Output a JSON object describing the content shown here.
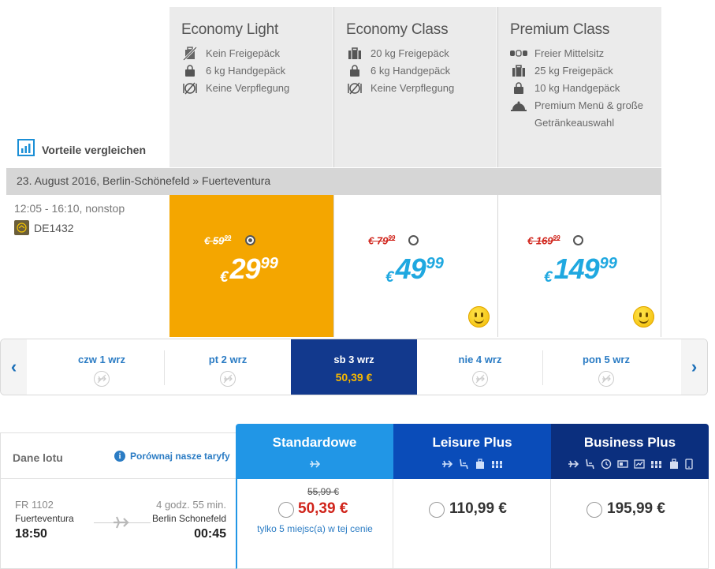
{
  "fares": [
    {
      "title": "Economy Light",
      "features": [
        {
          "icon": "no-baggage-icon",
          "text": "Kein Freigepäck"
        },
        {
          "icon": "handbag-icon",
          "text": "6 kg Handgepäck"
        },
        {
          "icon": "no-meal-icon",
          "text": "Keine Verpflegung"
        }
      ]
    },
    {
      "title": "Economy Class",
      "features": [
        {
          "icon": "suitcase-icon",
          "text": "20 kg Freigepäck"
        },
        {
          "icon": "handbag-icon",
          "text": "6 kg Handgepäck"
        },
        {
          "icon": "no-meal-icon",
          "text": "Keine Verpflegung"
        }
      ]
    },
    {
      "title": "Premium Class",
      "features": [
        {
          "icon": "free-seat-icon",
          "text": "Freier Mittelsitz"
        },
        {
          "icon": "suitcase-icon",
          "text": "25 kg Freigepäck"
        },
        {
          "icon": "handbag-icon",
          "text": "10 kg Handgepäck"
        },
        {
          "icon": "meal-cloche-icon",
          "text": "Premium Menü & große Getränkeauswahl"
        }
      ]
    }
  ],
  "compare_label": "Vorteile vergleichen",
  "route": "23. August 2016, Berlin-Schönefeld » Fuerteventura",
  "flight": {
    "times": "12:05 - 16:10, nonstop",
    "number": "DE1432"
  },
  "prices": [
    {
      "old": "€ 59",
      "old_cents": "99",
      "currency": "€",
      "main": "29",
      "cents": "99",
      "selected": true,
      "smiley": false
    },
    {
      "old": "€ 79",
      "old_cents": "99",
      "currency": "€",
      "main": "49",
      "cents": "99",
      "selected": false,
      "smiley": true
    },
    {
      "old": "€ 169",
      "old_cents": "99",
      "currency": "€",
      "main": "149",
      "cents": "99",
      "selected": false,
      "smiley": true
    }
  ],
  "colors": {
    "selected_fare_bg": "#f4a600",
    "price_blue": "#1fa8e0",
    "old_price_red": "#d0241b",
    "carousel_active_bg": "#12398d",
    "carousel_active_price": "#f6b700",
    "standard_head": "#2196e6",
    "leisure_head": "#0a4cb9",
    "business_head": "#0b2f7e"
  },
  "dates": [
    {
      "label": "czw 1 wrz",
      "price": "",
      "active": false
    },
    {
      "label": "pt 2 wrz",
      "price": "",
      "active": false
    },
    {
      "label": "sb 3 wrz",
      "price": "50,39 €",
      "active": true
    },
    {
      "label": "nie 4 wrz",
      "price": "",
      "active": false
    },
    {
      "label": "pon 5 wrz",
      "price": "",
      "active": false
    }
  ],
  "bottom": {
    "flight_data_label": "Dane lotu",
    "compare_link": "Porównaj nasze taryfy",
    "tariffs": [
      {
        "name": "Standardowe",
        "old": "55,99 €",
        "price": "50,39 €",
        "note": "tylko 5 miejsc(a) w tej cenie"
      },
      {
        "name": "Leisure Plus",
        "old": "",
        "price": "110,99 €",
        "note": ""
      },
      {
        "name": "Business Plus",
        "old": "",
        "price": "195,99 €",
        "note": ""
      }
    ],
    "flight": {
      "number": "FR 1102",
      "from": "Fuerteventura",
      "departure": "18:50",
      "duration": "4 godz. 55 min.",
      "to": "Berlin Schonefeld",
      "arrival": "00:45"
    }
  }
}
